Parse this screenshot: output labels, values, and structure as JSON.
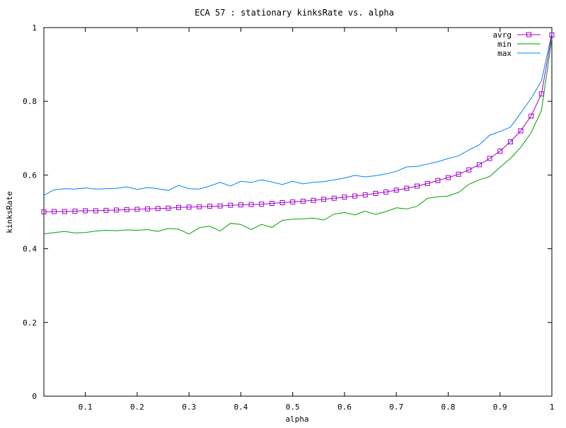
{
  "chart_data": {
    "type": "line",
    "title": "ECA 57 : stationary kinksRate vs. alpha",
    "xlabel": "alpha",
    "ylabel": "kinksRate",
    "xlim": [
      0.02,
      1.0
    ],
    "ylim": [
      0,
      1
    ],
    "xticks": [
      "0.1",
      "0.2",
      "0.3",
      "0.4",
      "0.5",
      "0.6",
      "0.7",
      "0.8",
      "0.9",
      "1"
    ],
    "yticks": [
      "0",
      "0.2",
      "0.4",
      "0.6",
      "0.8",
      "1"
    ],
    "grid": false,
    "legend_position": "top-right",
    "x": [
      0.02,
      0.04,
      0.06,
      0.08,
      0.1,
      0.12,
      0.14,
      0.16,
      0.18,
      0.2,
      0.22,
      0.24,
      0.26,
      0.28,
      0.3,
      0.32,
      0.34,
      0.36,
      0.38,
      0.4,
      0.42,
      0.44,
      0.46,
      0.48,
      0.5,
      0.52,
      0.54,
      0.56,
      0.58,
      0.6,
      0.62,
      0.64,
      0.66,
      0.68,
      0.7,
      0.72,
      0.74,
      0.76,
      0.78,
      0.8,
      0.82,
      0.84,
      0.86,
      0.88,
      0.9,
      0.92,
      0.94,
      0.96,
      0.98,
      1.0
    ],
    "series": [
      {
        "name": "avrg",
        "color": "#a000c8",
        "marker": "square",
        "values": [
          0.5,
          0.501,
          0.501,
          0.502,
          0.503,
          0.503,
          0.504,
          0.505,
          0.506,
          0.507,
          0.508,
          0.509,
          0.51,
          0.512,
          0.513,
          0.514,
          0.515,
          0.516,
          0.518,
          0.519,
          0.52,
          0.521,
          0.523,
          0.525,
          0.527,
          0.529,
          0.531,
          0.534,
          0.537,
          0.54,
          0.543,
          0.546,
          0.55,
          0.554,
          0.559,
          0.564,
          0.57,
          0.577,
          0.585,
          0.593,
          0.602,
          0.614,
          0.628,
          0.645,
          0.665,
          0.69,
          0.72,
          0.76,
          0.82,
          0.98
        ]
      },
      {
        "name": "min",
        "color": "#00a000",
        "values": [
          0.44,
          0.444,
          0.447,
          0.443,
          0.444,
          0.448,
          0.45,
          0.449,
          0.451,
          0.45,
          0.452,
          0.447,
          0.455,
          0.453,
          0.44,
          0.457,
          0.461,
          0.448,
          0.469,
          0.466,
          0.452,
          0.466,
          0.458,
          0.477,
          0.48,
          0.481,
          0.483,
          0.478,
          0.494,
          0.498,
          0.492,
          0.502,
          0.493,
          0.501,
          0.511,
          0.508,
          0.515,
          0.537,
          0.541,
          0.543,
          0.553,
          0.575,
          0.587,
          0.596,
          0.621,
          0.645,
          0.675,
          0.715,
          0.775,
          0.97
        ]
      },
      {
        "name": "max",
        "color": "#0080ff",
        "values": [
          0.545,
          0.56,
          0.563,
          0.562,
          0.565,
          0.562,
          0.563,
          0.564,
          0.568,
          0.561,
          0.566,
          0.563,
          0.558,
          0.572,
          0.563,
          0.562,
          0.57,
          0.58,
          0.57,
          0.583,
          0.58,
          0.587,
          0.581,
          0.574,
          0.583,
          0.576,
          0.58,
          0.582,
          0.587,
          0.592,
          0.599,
          0.595,
          0.598,
          0.603,
          0.61,
          0.622,
          0.623,
          0.63,
          0.636,
          0.645,
          0.652,
          0.668,
          0.682,
          0.708,
          0.718,
          0.73,
          0.768,
          0.808,
          0.855,
          0.985
        ]
      }
    ]
  }
}
